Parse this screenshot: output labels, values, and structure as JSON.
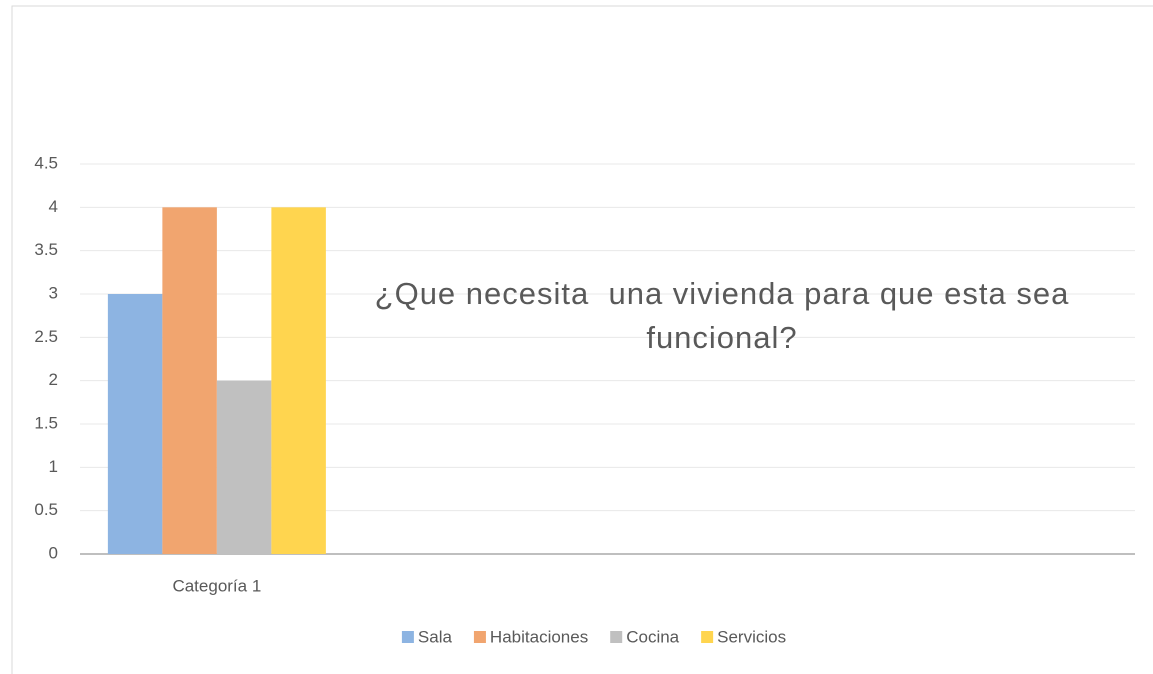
{
  "chart_data": {
    "type": "bar",
    "title": "¿Que necesita  una vivienda para que esta sea funcional?",
    "categories": [
      "Categoría 1",
      null,
      null,
      null
    ],
    "series": [
      {
        "name": "Sala",
        "color": "#8db4e2",
        "values": [
          3,
          null,
          null,
          null
        ]
      },
      {
        "name": "Habitaciones",
        "color": "#f1a56f",
        "values": [
          4,
          null,
          null,
          null
        ]
      },
      {
        "name": "Cocina",
        "color": "#c0c0c0",
        "values": [
          2,
          null,
          null,
          null
        ]
      },
      {
        "name": "Servicios",
        "color": "#ffd54f",
        "values": [
          4,
          null,
          null,
          null
        ]
      }
    ],
    "ylim": [
      0,
      4.5
    ],
    "yticks": [
      0,
      0.5,
      1,
      1.5,
      2,
      2.5,
      3,
      3.5,
      4,
      4.5
    ],
    "grid": true,
    "legend": "bottom"
  }
}
